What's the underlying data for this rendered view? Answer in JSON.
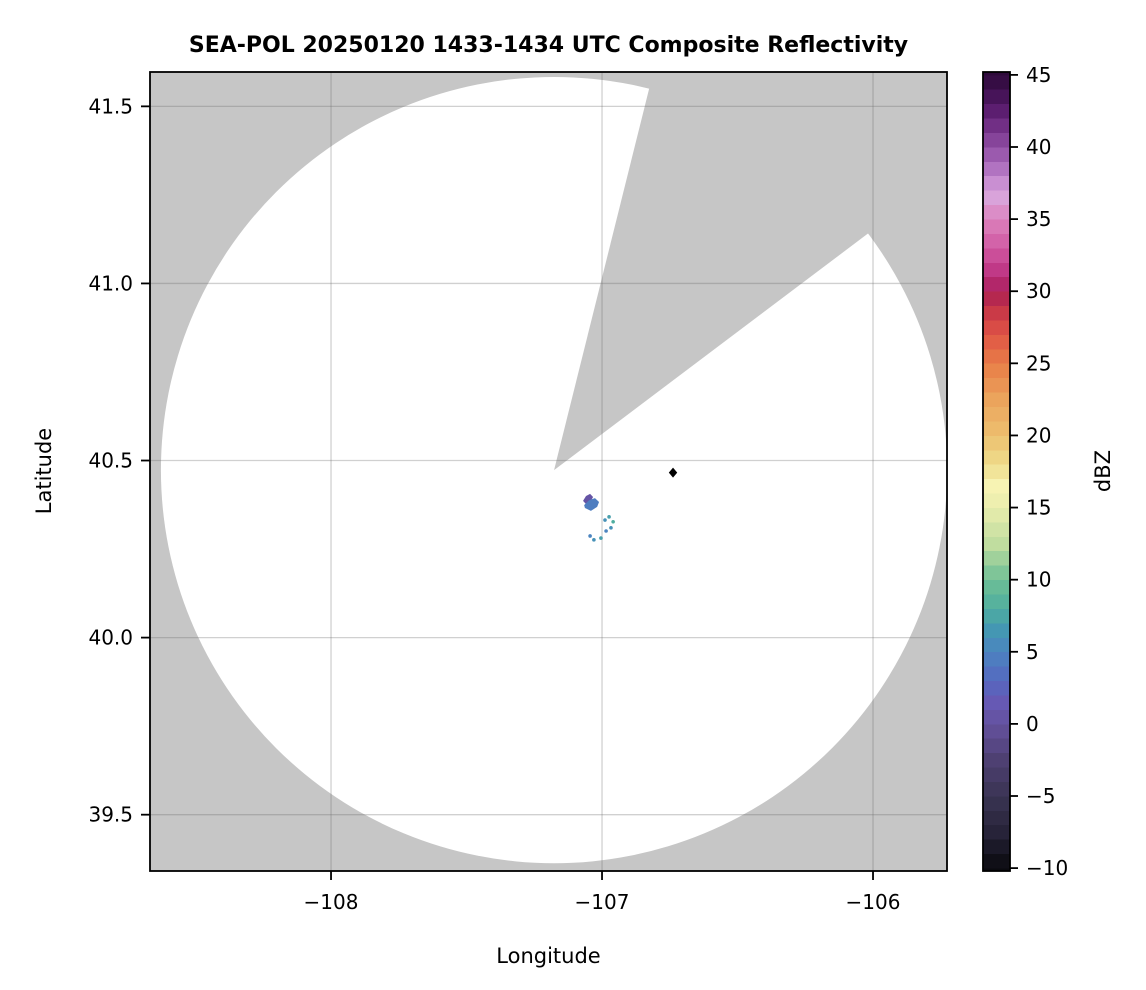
{
  "title": "SEA-POL 20250120 1433-1434 UTC Composite Reflectivity",
  "axes": {
    "xlabel": "Longitude",
    "ylabel": "Latitude",
    "xlim": [
      -108.668,
      -105.727
    ],
    "ylim": [
      39.341,
      41.597
    ],
    "grid": true,
    "x_ticks": [
      {
        "value": -108,
        "label": "−108"
      },
      {
        "value": -107,
        "label": "−107"
      },
      {
        "value": -106,
        "label": "−106"
      }
    ],
    "y_ticks": [
      {
        "value": 41.5,
        "label": "41.5"
      },
      {
        "value": 41.0,
        "label": "41.0"
      },
      {
        "value": 40.5,
        "label": "40.5"
      },
      {
        "value": 40.0,
        "label": "40.0"
      },
      {
        "value": 39.5,
        "label": "39.5"
      }
    ]
  },
  "colorbar": {
    "label": "dBZ",
    "vmin": -10,
    "vmax": 45,
    "edge_pad": 0.2,
    "band_step": 1,
    "tick_values": [
      45,
      40,
      35,
      30,
      25,
      20,
      15,
      10,
      5,
      0,
      -5,
      -10
    ],
    "tick_labels": [
      "45",
      "40",
      "35",
      "30",
      "25",
      "20",
      "15",
      "10",
      "5",
      "0",
      "−5",
      "−10"
    ],
    "stops": [
      [
        -10,
        "#0a0a0f"
      ],
      [
        -7.5,
        "#272339"
      ],
      [
        -5,
        "#3a3453"
      ],
      [
        -2.5,
        "#4e4072"
      ],
      [
        0,
        "#65519e"
      ],
      [
        1.5,
        "#6659b4"
      ],
      [
        3,
        "#5668c0"
      ],
      [
        5,
        "#4b84c0"
      ],
      [
        6.5,
        "#4497b3"
      ],
      [
        8,
        "#4fae9f"
      ],
      [
        10,
        "#6fbf96"
      ],
      [
        12.5,
        "#c0dd9f"
      ],
      [
        15,
        "#e9edad"
      ],
      [
        16.5,
        "#f7f3b3"
      ],
      [
        18,
        "#eedd8c"
      ],
      [
        20,
        "#edc06f"
      ],
      [
        22.5,
        "#eba45c"
      ],
      [
        25,
        "#e87d47"
      ],
      [
        27,
        "#e05545"
      ],
      [
        29,
        "#c23148"
      ],
      [
        30,
        "#a81f55"
      ],
      [
        31,
        "#bb2e7e"
      ],
      [
        33,
        "#d058a2"
      ],
      [
        35,
        "#dc82bd"
      ],
      [
        36.5,
        "#d9a3da"
      ],
      [
        37.5,
        "#c98fd2"
      ],
      [
        38.5,
        "#b173c1"
      ],
      [
        40,
        "#904ea4"
      ],
      [
        41.5,
        "#712f85"
      ],
      [
        42.5,
        "#5c1e70"
      ],
      [
        43.5,
        "#471459"
      ],
      [
        45,
        "#2e0a3a"
      ]
    ]
  },
  "chart_data": {
    "type": "heatmap",
    "field": "composite reflectivity (dBZ)",
    "radar": {
      "lon": -107.177,
      "lat": 40.473,
      "coverage_radius_deg_lat": 1.11,
      "blocked_sector_azimuth_deg": [
        14,
        53
      ]
    },
    "colors": {
      "out_of_range": "#c6c6c6",
      "clear_air": "#ffffff",
      "grid": "rgba(110,110,110,0.32)",
      "site_marker": "#000000"
    },
    "site_marker": {
      "shape": "diamond",
      "lon": -106.738,
      "lat": 40.466
    },
    "echoes": {
      "polygons": [
        {
          "dbz": 0.5,
          "points": [
            [
              -107.07,
              40.386
            ],
            [
              -107.059,
              40.4
            ],
            [
              -107.044,
              40.406
            ],
            [
              -107.033,
              40.397
            ],
            [
              -107.041,
              40.386
            ],
            [
              -107.059,
              40.377
            ]
          ]
        },
        {
          "dbz": 4.5,
          "points": [
            [
              -107.066,
              40.374
            ],
            [
              -107.048,
              40.388
            ],
            [
              -107.026,
              40.394
            ],
            [
              -107.011,
              40.383
            ],
            [
              -107.018,
              40.369
            ],
            [
              -107.041,
              40.358
            ],
            [
              -107.063,
              40.366
            ]
          ]
        }
      ],
      "cells": [
        {
          "lon": -106.989,
          "lat": 40.332,
          "dbz": 6
        },
        {
          "lon": -106.974,
          "lat": 40.341,
          "dbz": 7
        },
        {
          "lon": -106.959,
          "lat": 40.327,
          "dbz": 8
        },
        {
          "lon": -106.967,
          "lat": 40.31,
          "dbz": 6
        },
        {
          "lon": -106.985,
          "lat": 40.301,
          "dbz": 5
        },
        {
          "lon": -107.044,
          "lat": 40.287,
          "dbz": 5
        },
        {
          "lon": -107.03,
          "lat": 40.276,
          "dbz": 6
        },
        {
          "lon": -107.004,
          "lat": 40.281,
          "dbz": 7
        }
      ]
    }
  }
}
